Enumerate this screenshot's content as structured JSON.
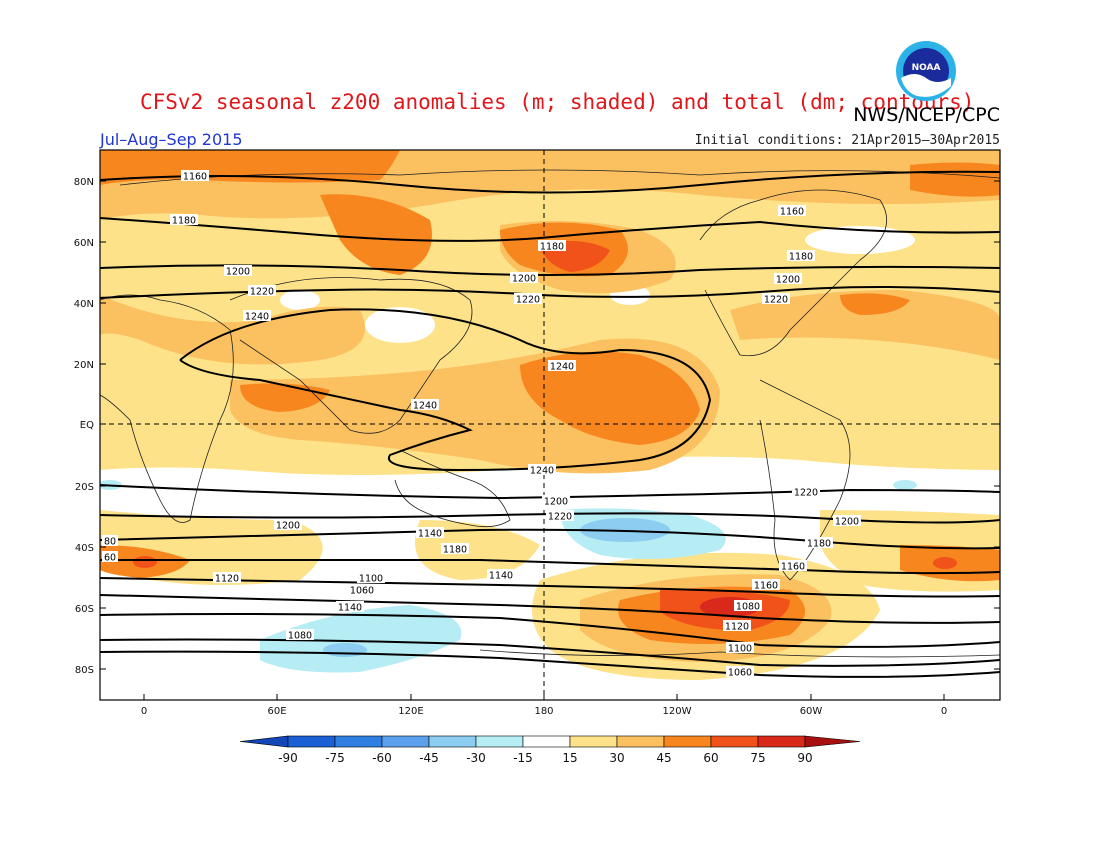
{
  "header": {
    "title": "CFSv2 seasonal z200 anomalies (m; shaded) and total (dm; contours)",
    "agency": "NWS/NCEP/CPC",
    "season": "Jul–Aug–Sep 2015",
    "initial_conditions": "Initial conditions: 21Apr2015–30Apr2015",
    "logo_text": "NOAA"
  },
  "map": {
    "lat_labels": [
      "80N",
      "60N",
      "40N",
      "20N",
      "EQ",
      "20S",
      "40S",
      "60S",
      "80S"
    ],
    "lon_labels": [
      "0",
      "60E",
      "120E",
      "180",
      "120W",
      "60W",
      "0"
    ],
    "contour_labels": [
      "1160",
      "1180",
      "1200",
      "1220",
      "1240",
      "1180",
      "1200",
      "1220",
      "1160",
      "1180",
      "1200",
      "1220",
      "1240",
      "1240",
      "1240",
      "1220",
      "1200",
      "1220",
      "1200",
      "1180",
      "1160",
      "1200",
      "1140",
      "1180",
      "1160",
      "1140",
      "1120",
      "1100",
      "1080",
      "1060",
      "1140",
      "1120",
      "1100",
      "1080",
      "1060",
      "80",
      "60"
    ],
    "colors": {
      "anom_15_30": "#fde28a",
      "anom_30_45": "#fbc060",
      "anom_45_60": "#f8861e",
      "anom_60_75": "#f0521a",
      "anom_75_90": "#d8291b",
      "anom_neg_15_30": "#b6ecf4",
      "anom_neg_30_45": "#8ccdf1"
    }
  },
  "colorbar": {
    "labels": [
      "-90",
      "-75",
      "-60",
      "-45",
      "-30",
      "-15",
      "15",
      "30",
      "45",
      "60",
      "75",
      "90"
    ],
    "colors": [
      "#1b5fd4",
      "#2f7fe3",
      "#5ba0ec",
      "#8ccdf1",
      "#b6ecf4",
      "#ffffff",
      "#fde28a",
      "#fbc060",
      "#f8861e",
      "#f0521a",
      "#d8291b"
    ],
    "left_arrow_color": "#1346b8",
    "right_arrow_color": "#a81010"
  }
}
